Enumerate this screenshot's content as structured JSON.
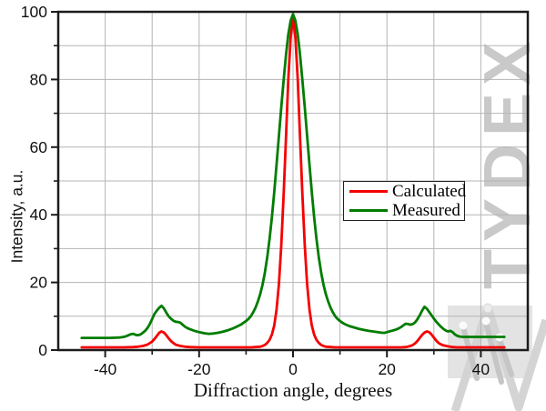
{
  "watermark": {
    "text": "TYDEX"
  },
  "chart_data": {
    "type": "line",
    "title": "",
    "xlabel": "Diffraction angle, degrees",
    "ylabel": "Intensity, a.u.",
    "xlim": [
      -50,
      50
    ],
    "ylim": [
      0,
      100
    ],
    "x_major_ticks": [
      -40,
      -20,
      0,
      20,
      40
    ],
    "x_minor_ticks": [
      -30,
      -10,
      10,
      30
    ],
    "y_major_ticks": [
      0,
      20,
      40,
      60,
      80,
      100
    ],
    "y_minor_ticks": [
      10,
      30,
      50,
      70,
      90
    ],
    "grid": true,
    "grid_interval": 10,
    "legend_position": "inside right-center",
    "colors": {
      "grid": "#b4b4b4",
      "frame": "#1c1c1c",
      "watermark": "#c9c9c9",
      "calculated": "#f40000",
      "measured": "#007c00"
    },
    "series": [
      {
        "name": "Calculated",
        "color": "#f40000",
        "points": [
          [
            -45,
            0.8
          ],
          [
            -40,
            0.8
          ],
          [
            -36,
            0.8
          ],
          [
            -34,
            0.9
          ],
          [
            -33,
            1
          ],
          [
            -32,
            1.2
          ],
          [
            -31,
            1.6
          ],
          [
            -30,
            2.5
          ],
          [
            -29.5,
            3.3
          ],
          [
            -29,
            4.2
          ],
          [
            -28.5,
            5.1
          ],
          [
            -28,
            5.5
          ],
          [
            -27.5,
            5.2
          ],
          [
            -27,
            4.4
          ],
          [
            -26.5,
            3.5
          ],
          [
            -26,
            2.7
          ],
          [
            -25.5,
            2.1
          ],
          [
            -25,
            1.6
          ],
          [
            -24,
            1.2
          ],
          [
            -23,
            1
          ],
          [
            -22,
            0.9
          ],
          [
            -20,
            0.8
          ],
          [
            -16,
            0.8
          ],
          [
            -12,
            0.8
          ],
          [
            -9,
            0.8
          ],
          [
            -8,
            0.9
          ],
          [
            -7,
            1
          ],
          [
            -6.5,
            1.2
          ],
          [
            -6,
            1.5
          ],
          [
            -5.5,
            2.1
          ],
          [
            -5,
            3
          ],
          [
            -4.5,
            4.6
          ],
          [
            -4,
            7.3
          ],
          [
            -3.5,
            12
          ],
          [
            -3,
            19.5
          ],
          [
            -2.5,
            31
          ],
          [
            -2,
            46
          ],
          [
            -1.5,
            63
          ],
          [
            -1,
            80
          ],
          [
            -0.5,
            92.5
          ],
          [
            0,
            98.3
          ],
          [
            0.5,
            92.5
          ],
          [
            1,
            80
          ],
          [
            1.5,
            63
          ],
          [
            2,
            46
          ],
          [
            2.5,
            31
          ],
          [
            3,
            19.5
          ],
          [
            3.5,
            12
          ],
          [
            4,
            7.3
          ],
          [
            4.5,
            4.6
          ],
          [
            5,
            3
          ],
          [
            5.5,
            2.1
          ],
          [
            6,
            1.5
          ],
          [
            6.5,
            1.2
          ],
          [
            7,
            1
          ],
          [
            8,
            0.9
          ],
          [
            9,
            0.8
          ],
          [
            12,
            0.8
          ],
          [
            16,
            0.8
          ],
          [
            20,
            0.8
          ],
          [
            23,
            0.8
          ],
          [
            24,
            0.9
          ],
          [
            25,
            1.2
          ],
          [
            25.5,
            1.5
          ],
          [
            26,
            2
          ],
          [
            26.5,
            2.7
          ],
          [
            27,
            3.6
          ],
          [
            27.5,
            4.5
          ],
          [
            28,
            5.2
          ],
          [
            28.5,
            5.5
          ],
          [
            29,
            5.3
          ],
          [
            29.5,
            4.6
          ],
          [
            30,
            3.7
          ],
          [
            30.5,
            2.8
          ],
          [
            31,
            2.1
          ],
          [
            31.5,
            1.7
          ],
          [
            32,
            1.4
          ],
          [
            33,
            1.1
          ],
          [
            34,
            0.9
          ],
          [
            35,
            0.8
          ],
          [
            40,
            0.8
          ],
          [
            45,
            0.8
          ]
        ]
      },
      {
        "name": "Measured",
        "color": "#007c00",
        "points": [
          [
            -45,
            3.6
          ],
          [
            -42,
            3.6
          ],
          [
            -39,
            3.6
          ],
          [
            -37,
            3.7
          ],
          [
            -36,
            3.9
          ],
          [
            -35.5,
            4.1
          ],
          [
            -35,
            4.4
          ],
          [
            -34.5,
            4.7
          ],
          [
            -34,
            4.8
          ],
          [
            -33.5,
            4.5
          ],
          [
            -33,
            4.4
          ],
          [
            -32.5,
            4.6
          ],
          [
            -32,
            5.1
          ],
          [
            -31.5,
            5.7
          ],
          [
            -31,
            6.5
          ],
          [
            -30.5,
            7.7
          ],
          [
            -30,
            9.2
          ],
          [
            -29.5,
            10.7
          ],
          [
            -29,
            11.7
          ],
          [
            -28.5,
            12.5
          ],
          [
            -28,
            13.1
          ],
          [
            -27.5,
            12.3
          ],
          [
            -27,
            11.1
          ],
          [
            -26.5,
            10
          ],
          [
            -26,
            9.3
          ],
          [
            -25.5,
            8.7
          ],
          [
            -25,
            8.4
          ],
          [
            -24.5,
            8.3
          ],
          [
            -24,
            8.1
          ],
          [
            -23.5,
            7.5
          ],
          [
            -23,
            6.9
          ],
          [
            -22.5,
            6.5
          ],
          [
            -22,
            6.2
          ],
          [
            -21,
            5.7
          ],
          [
            -20,
            5.3
          ],
          [
            -19,
            5
          ],
          [
            -18,
            4.8
          ],
          [
            -17,
            4.9
          ],
          [
            -16,
            5.1
          ],
          [
            -15,
            5.4
          ],
          [
            -14,
            5.8
          ],
          [
            -13,
            6.3
          ],
          [
            -12,
            6.9
          ],
          [
            -11,
            7.6
          ],
          [
            -10,
            8.6
          ],
          [
            -9.5,
            9.2
          ],
          [
            -9,
            10
          ],
          [
            -8.5,
            11.1
          ],
          [
            -8,
            12.5
          ],
          [
            -7.5,
            14.3
          ],
          [
            -7,
            16.5
          ],
          [
            -6.5,
            19.3
          ],
          [
            -6,
            22.8
          ],
          [
            -5.5,
            27.3
          ],
          [
            -5,
            32.8
          ],
          [
            -4.5,
            39.3
          ],
          [
            -4,
            46.8
          ],
          [
            -3.5,
            54.8
          ],
          [
            -3,
            63.3
          ],
          [
            -2.5,
            71.8
          ],
          [
            -2,
            79.8
          ],
          [
            -1.5,
            87.3
          ],
          [
            -1,
            93.3
          ],
          [
            -0.5,
            97.4
          ],
          [
            0,
            99.3
          ],
          [
            0.5,
            97.4
          ],
          [
            1,
            93.3
          ],
          [
            1.5,
            87.3
          ],
          [
            2,
            79.8
          ],
          [
            2.5,
            71.8
          ],
          [
            3,
            63.3
          ],
          [
            3.5,
            54.8
          ],
          [
            4,
            46.8
          ],
          [
            4.5,
            39.3
          ],
          [
            5,
            32.8
          ],
          [
            5.5,
            27.3
          ],
          [
            6,
            22.8
          ],
          [
            6.5,
            19.3
          ],
          [
            7,
            16.5
          ],
          [
            7.5,
            14.3
          ],
          [
            8,
            12.5
          ],
          [
            8.5,
            11.1
          ],
          [
            9,
            10
          ],
          [
            9.5,
            9.2
          ],
          [
            10,
            8.6
          ],
          [
            10.5,
            8.1
          ],
          [
            11,
            7.7
          ],
          [
            11.5,
            7.4
          ],
          [
            12,
            7.1
          ],
          [
            13,
            6.7
          ],
          [
            14,
            6.3
          ],
          [
            15,
            6
          ],
          [
            16,
            5.7
          ],
          [
            17,
            5.5
          ],
          [
            18,
            5.3
          ],
          [
            19,
            5.1
          ],
          [
            19.5,
            5.1
          ],
          [
            20,
            5.3
          ],
          [
            20.5,
            5.5
          ],
          [
            21,
            5.7
          ],
          [
            21.5,
            5.9
          ],
          [
            22,
            6.1
          ],
          [
            22.5,
            6.4
          ],
          [
            23,
            6.8
          ],
          [
            23.5,
            7.3
          ],
          [
            24,
            7.8
          ],
          [
            24.5,
            7.7
          ],
          [
            25,
            7.5
          ],
          [
            25.5,
            7.7
          ],
          [
            26,
            8.2
          ],
          [
            26.5,
            9.1
          ],
          [
            27,
            10.3
          ],
          [
            27.5,
            11.7
          ],
          [
            28,
            12.8
          ],
          [
            28.5,
            12.2
          ],
          [
            29,
            11.3
          ],
          [
            29.5,
            10.3
          ],
          [
            30,
            9.3
          ],
          [
            30.5,
            8.4
          ],
          [
            31,
            7.6
          ],
          [
            31.5,
            6.9
          ],
          [
            32,
            6.3
          ],
          [
            32.5,
            5.8
          ],
          [
            33,
            5.5
          ],
          [
            33.5,
            5.7
          ],
          [
            34,
            5.3
          ],
          [
            34.5,
            4.6
          ],
          [
            35,
            4.2
          ],
          [
            35.5,
            4
          ],
          [
            36,
            3.9
          ],
          [
            38,
            3.9
          ],
          [
            41,
            3.9
          ],
          [
            45,
            3.9
          ]
        ]
      }
    ]
  }
}
